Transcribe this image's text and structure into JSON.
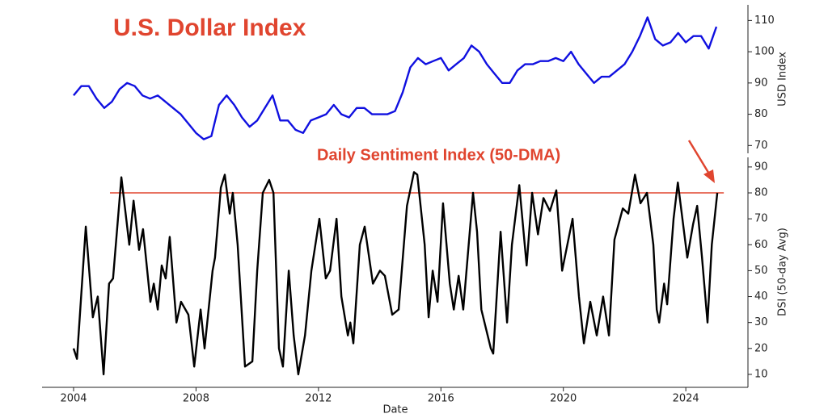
{
  "chart_data": [
    {
      "type": "line",
      "title": "U.S. Dollar Index",
      "ylabel": "USD Index",
      "x": [
        2004.0,
        2004.25,
        2004.5,
        2004.75,
        2005.0,
        2005.25,
        2005.5,
        2005.75,
        2006.0,
        2006.25,
        2006.5,
        2006.75,
        2007.0,
        2007.25,
        2007.5,
        2007.75,
        2008.0,
        2008.25,
        2008.5,
        2008.75,
        2009.0,
        2009.25,
        2009.5,
        2009.75,
        2010.0,
        2010.25,
        2010.5,
        2010.75,
        2011.0,
        2011.25,
        2011.5,
        2011.75,
        2012.0,
        2012.25,
        2012.5,
        2012.75,
        2013.0,
        2013.25,
        2013.5,
        2013.75,
        2014.0,
        2014.25,
        2014.5,
        2014.75,
        2015.0,
        2015.25,
        2015.5,
        2015.75,
        2016.0,
        2016.25,
        2016.5,
        2016.75,
        2017.0,
        2017.25,
        2017.5,
        2017.75,
        2018.0,
        2018.25,
        2018.5,
        2018.75,
        2019.0,
        2019.25,
        2019.5,
        2019.75,
        2020.0,
        2020.25,
        2020.5,
        2020.75,
        2021.0,
        2021.25,
        2021.5,
        2021.75,
        2022.0,
        2022.25,
        2022.5,
        2022.75,
        2023.0,
        2023.25,
        2023.5,
        2023.75,
        2024.0,
        2024.25,
        2024.5,
        2024.75,
        2025.0
      ],
      "series": [
        {
          "name": "USD Index",
          "color": "#1010e0",
          "values": [
            86,
            89,
            89,
            85,
            82,
            84,
            88,
            90,
            89,
            86,
            85,
            86,
            84,
            82,
            80,
            77,
            74,
            72,
            73,
            83,
            86,
            83,
            79,
            76,
            78,
            82,
            86,
            78,
            78,
            75,
            74,
            78,
            79,
            80,
            83,
            80,
            79,
            82,
            82,
            80,
            80,
            80,
            81,
            87,
            95,
            98,
            96,
            97,
            98,
            94,
            96,
            98,
            102,
            100,
            96,
            93,
            90,
            90,
            94,
            96,
            96,
            97,
            97,
            98,
            97,
            100,
            96,
            93,
            90,
            92,
            92,
            94,
            96,
            100,
            105,
            111,
            104,
            102,
            103,
            106,
            103,
            105,
            105,
            101,
            108
          ]
        }
      ],
      "xlim": [
        2002.97,
        2026.03
      ],
      "ylim": [
        67.5,
        115
      ],
      "yticks": [
        70,
        80,
        90,
        100,
        110
      ]
    },
    {
      "type": "line",
      "title": "Daily Sentiment Index (50-DMA)",
      "ylabel": "DSI (50-day Avg)",
      "xlabel": "Date",
      "x": [
        2004.0,
        2004.11,
        2004.4,
        2004.63,
        2004.79,
        2004.98,
        2005.16,
        2005.29,
        2005.56,
        2005.82,
        2005.96,
        2006.14,
        2006.27,
        2006.51,
        2006.62,
        2006.75,
        2006.88,
        2007.01,
        2007.14,
        2007.36,
        2007.51,
        2007.75,
        2007.94,
        2008.15,
        2008.28,
        2008.54,
        2008.62,
        2008.81,
        2008.94,
        2009.1,
        2009.2,
        2009.36,
        2009.6,
        2009.84,
        2010.0,
        2010.18,
        2010.39,
        2010.53,
        2010.71,
        2010.84,
        2011.03,
        2011.19,
        2011.34,
        2011.56,
        2011.77,
        2012.03,
        2012.24,
        2012.38,
        2012.59,
        2012.75,
        2012.96,
        2013.04,
        2013.14,
        2013.35,
        2013.51,
        2013.78,
        2014.01,
        2014.17,
        2014.41,
        2014.62,
        2014.89,
        2015.12,
        2015.23,
        2015.47,
        2015.6,
        2015.73,
        2015.89,
        2016.07,
        2016.29,
        2016.42,
        2016.58,
        2016.73,
        2017.05,
        2017.18,
        2017.32,
        2017.63,
        2017.71,
        2017.95,
        2018.16,
        2018.32,
        2018.56,
        2018.8,
        2018.98,
        2019.17,
        2019.35,
        2019.56,
        2019.77,
        2019.96,
        2020.3,
        2020.51,
        2020.67,
        2020.88,
        2021.09,
        2021.3,
        2021.49,
        2021.67,
        2021.94,
        2022.12,
        2022.34,
        2022.52,
        2022.73,
        2022.94,
        2023.05,
        2023.13,
        2023.29,
        2023.39,
        2023.6,
        2023.74,
        2024.05,
        2024.24,
        2024.37,
        2024.53,
        2024.71,
        2024.85,
        2025.03
      ],
      "series": [
        {
          "name": "DSI",
          "color": "#000000",
          "values": [
            20,
            16,
            67,
            32,
            40,
            10,
            45,
            47,
            86,
            60,
            77,
            58,
            66,
            38,
            45,
            35,
            52,
            47,
            63,
            30,
            38,
            33,
            13,
            35,
            20,
            50,
            55,
            82,
            87,
            72,
            80,
            60,
            13,
            15,
            50,
            80,
            85,
            80,
            20,
            13,
            50,
            25,
            10,
            25,
            50,
            70,
            47,
            50,
            70,
            40,
            25,
            30,
            22,
            60,
            67,
            45,
            50,
            48,
            33,
            35,
            75,
            88,
            87,
            60,
            32,
            50,
            38,
            76,
            45,
            35,
            48,
            35,
            80,
            65,
            35,
            20,
            18,
            65,
            30,
            60,
            83,
            52,
            80,
            64,
            78,
            73,
            81,
            50,
            70,
            40,
            22,
            38,
            25,
            40,
            25,
            62,
            74,
            72,
            87,
            76,
            80,
            60,
            35,
            30,
            45,
            37,
            70,
            84,
            55,
            68,
            75,
            55,
            30,
            60,
            80
          ]
        }
      ],
      "reference_line": {
        "value": 80,
        "color": "#e0452f"
      },
      "xlim": [
        2002.97,
        2026.03
      ],
      "xticks": [
        2004,
        2008,
        2012,
        2016,
        2020,
        2024
      ],
      "ylim": [
        5,
        93.7
      ],
      "yticks": [
        10,
        20,
        30,
        40,
        50,
        60,
        70,
        80,
        90
      ]
    }
  ]
}
